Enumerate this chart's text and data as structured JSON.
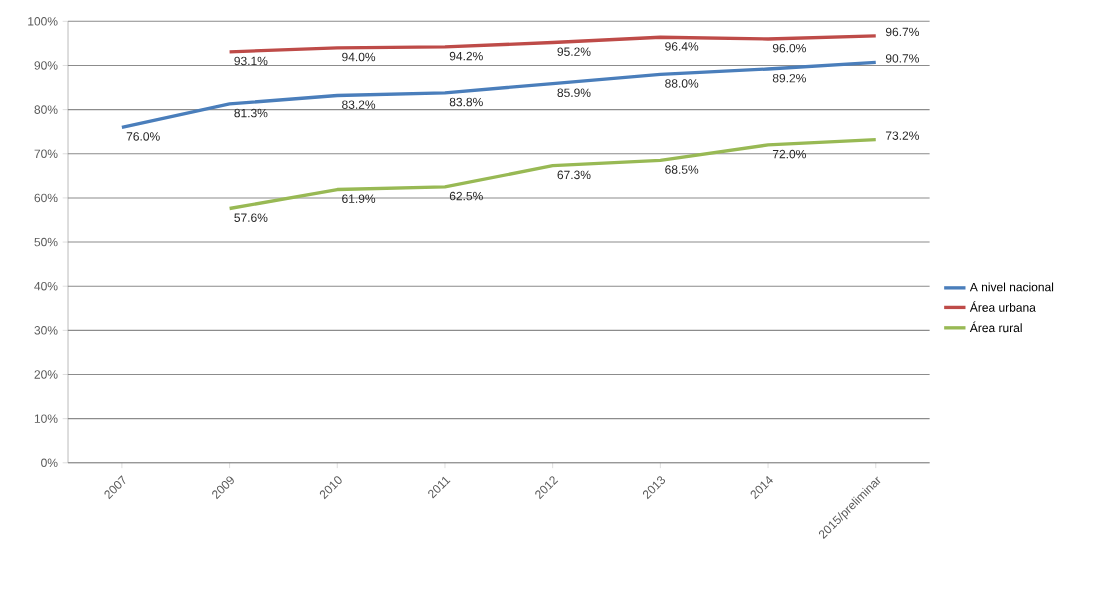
{
  "chart_data": {
    "type": "line",
    "categories": [
      "2007",
      "2009",
      "2010",
      "2011",
      "2012",
      "2013",
      "2014",
      "2015/preliminar"
    ],
    "series": [
      {
        "name": "A nivel nacional",
        "color": "#4a7ebb",
        "values": [
          76.0,
          81.3,
          83.2,
          83.8,
          85.9,
          88.0,
          89.2,
          90.7
        ],
        "value_labels": [
          "76.0%",
          "81.3%",
          "83.2%",
          "83.8%",
          "85.9%",
          "88.0%",
          "89.2%",
          "90.7%"
        ]
      },
      {
        "name": "Área urbana",
        "color": "#be4b48",
        "values": [
          null,
          93.1,
          94.0,
          94.2,
          95.2,
          96.4,
          96.0,
          96.7
        ],
        "value_labels": [
          null,
          "93.1%",
          "94.0%",
          "94.2%",
          "95.2%",
          "96.4%",
          "96.0%",
          "96.7%"
        ]
      },
      {
        "name": "Área rural",
        "color": "#98b954",
        "values": [
          null,
          57.6,
          61.9,
          62.5,
          67.3,
          68.5,
          72.0,
          73.2
        ],
        "value_labels": [
          null,
          "57.6%",
          "61.9%",
          "62.5%",
          "67.3%",
          "68.5%",
          "72.0%",
          "73.2%"
        ]
      }
    ],
    "ylim": [
      0,
      100
    ],
    "yticks": [
      {
        "value": 0,
        "label": "0%"
      },
      {
        "value": 10,
        "label": "10%"
      },
      {
        "value": 20,
        "label": "20%"
      },
      {
        "value": 30,
        "label": "30%"
      },
      {
        "value": 40,
        "label": "40%"
      },
      {
        "value": 50,
        "label": "50%"
      },
      {
        "value": 60,
        "label": "60%"
      },
      {
        "value": 70,
        "label": "70%"
      },
      {
        "value": 80,
        "label": "80%"
      },
      {
        "value": 90,
        "label": "90%"
      },
      {
        "value": 100,
        "label": "100%"
      }
    ],
    "grid": "y",
    "legend": "right",
    "marker": "none",
    "line_style": "solid"
  }
}
